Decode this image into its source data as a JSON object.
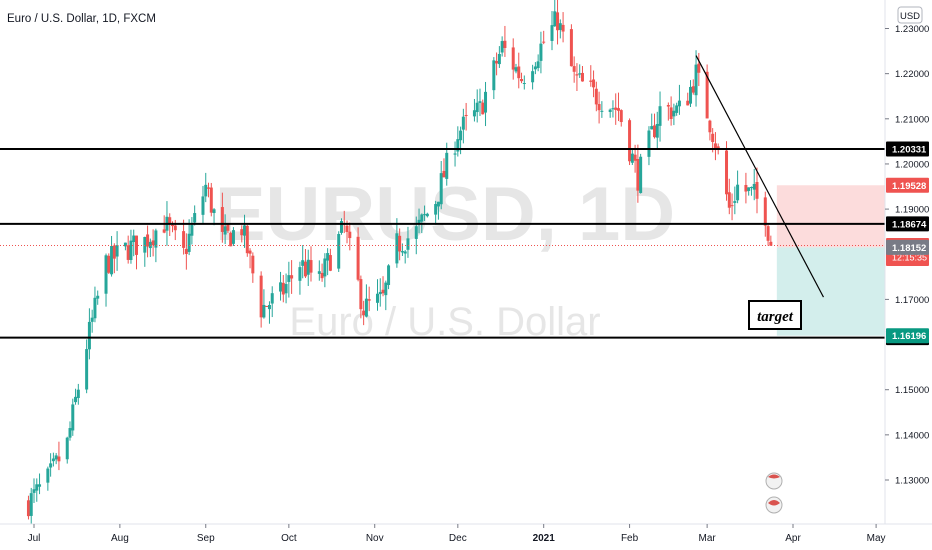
{
  "header": {
    "symbol_title": "Euro / U.S. Dollar, 1D, FXCM",
    "currency_badge": "USD"
  },
  "watermark": {
    "ticker": "EURUSD, 1D",
    "name": "Euro / U.S. Dollar"
  },
  "annotation": {
    "text": "target"
  },
  "colors": {
    "up": "#26a69a",
    "down": "#ef5350",
    "level_line": "#000000",
    "stop_zone": "#fcdcdc",
    "target_zone": "#d3eeec",
    "price_line": "#ef5350",
    "watermark": "#e6e6e6"
  },
  "chart_data": {
    "type": "candlestick",
    "title": "Euro / U.S. Dollar, 1D, FXCM",
    "x_ticks": [
      "Jul",
      "Aug",
      "Sep",
      "Oct",
      "Nov",
      "Dec",
      "2021",
      "Feb",
      "Mar",
      "Apr",
      "May"
    ],
    "y_ticks": [
      "1.23000",
      "1.22000",
      "1.21000",
      "1.20000",
      "1.19000",
      "1.17000",
      "1.15000",
      "1.14000",
      "1.13000"
    ],
    "ylim": [
      1.1195,
      1.2347
    ],
    "grid": false,
    "candle_anchors": [
      {
        "date": "2020-06-29",
        "price": 1.125
      },
      {
        "date": "2020-07-06",
        "price": 1.13
      },
      {
        "date": "2020-07-13",
        "price": 1.138
      },
      {
        "date": "2020-07-20",
        "price": 1.16
      },
      {
        "date": "2020-07-27",
        "price": 1.178
      },
      {
        "date": "2020-08-03",
        "price": 1.181
      },
      {
        "date": "2020-08-10",
        "price": 1.183
      },
      {
        "date": "2020-08-17",
        "price": 1.187
      },
      {
        "date": "2020-08-24",
        "price": 1.18
      },
      {
        "date": "2020-09-01",
        "price": 1.195
      },
      {
        "date": "2020-09-07",
        "price": 1.183
      },
      {
        "date": "2020-09-14",
        "price": 1.186
      },
      {
        "date": "2020-09-21",
        "price": 1.168
      },
      {
        "date": "2020-09-28",
        "price": 1.171
      },
      {
        "date": "2020-10-05",
        "price": 1.178
      },
      {
        "date": "2020-10-12",
        "price": 1.174
      },
      {
        "date": "2020-10-21",
        "price": 1.186
      },
      {
        "date": "2020-10-28",
        "price": 1.168
      },
      {
        "date": "2020-11-04",
        "price": 1.17
      },
      {
        "date": "2020-11-09",
        "price": 1.182
      },
      {
        "date": "2020-11-16",
        "price": 1.185
      },
      {
        "date": "2020-11-23",
        "price": 1.192
      },
      {
        "date": "2020-12-01",
        "price": 1.207
      },
      {
        "date": "2020-12-09",
        "price": 1.212
      },
      {
        "date": "2020-12-17",
        "price": 1.226
      },
      {
        "date": "2020-12-24",
        "price": 1.219
      },
      {
        "date": "2021-01-06",
        "price": 1.232
      },
      {
        "date": "2021-01-12",
        "price": 1.219
      },
      {
        "date": "2021-01-20",
        "price": 1.215
      },
      {
        "date": "2021-01-28",
        "price": 1.212
      },
      {
        "date": "2021-02-04",
        "price": 1.197
      },
      {
        "date": "2021-02-12",
        "price": 1.212
      },
      {
        "date": "2021-02-20",
        "price": 1.212
      },
      {
        "date": "2021-02-25",
        "price": 1.22
      },
      {
        "date": "2021-03-04",
        "price": 1.205
      },
      {
        "date": "2021-03-09",
        "price": 1.19
      },
      {
        "date": "2021-03-12",
        "price": 1.195
      },
      {
        "date": "2021-03-18",
        "price": 1.193
      },
      {
        "date": "2021-03-22",
        "price": 1.189
      },
      {
        "date": "2021-03-24",
        "price": 1.1819
      }
    ],
    "horizontal_levels": [
      {
        "name": "level-1",
        "price": 1.20331,
        "label": "1.20331"
      },
      {
        "name": "level-2",
        "price": 1.18674,
        "label": "1.18674"
      },
      {
        "name": "level-3",
        "price": 1.16154,
        "label": "1.16154"
      }
    ],
    "price_labels": [
      {
        "name": "stop-price",
        "price": 1.19528,
        "label": "1.19528",
        "color": "#ef5350"
      },
      {
        "name": "last-price",
        "price": 1.18194,
        "label": "1.18194",
        "sub": "12:15:35",
        "color": "#ef5350"
      },
      {
        "name": "entry-price",
        "price": 1.18152,
        "label": "1.18152",
        "color": "#787b86"
      },
      {
        "name": "target-price",
        "price": 1.16196,
        "label": "1.16196",
        "color": "#089981"
      }
    ],
    "position": {
      "entry": 1.18152,
      "stop": 1.19528,
      "target": 1.16196,
      "start_date": "2021-03-24",
      "end_date": "2021-05-03"
    },
    "trendline": [
      {
        "date": "2021-02-25",
        "price": 1.224
      },
      {
        "date": "2021-04-12",
        "price": 1.1705
      }
    ]
  }
}
